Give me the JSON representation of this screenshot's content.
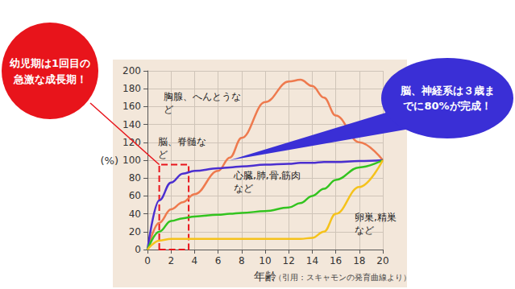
{
  "chart_data": {
    "type": "line",
    "x_label": "年齢",
    "y_label": "(%)",
    "source": "（引用：スキャモンの発育曲線より）",
    "x": [
      0,
      1,
      2,
      3,
      4,
      6,
      7,
      8,
      10,
      12,
      13,
      14,
      15,
      16,
      18,
      20
    ],
    "series": [
      {
        "name": "胸腺、へんとうなど",
        "color": "#ee7a4e",
        "values": [
          0,
          30,
          45,
          53,
          62,
          88,
          103,
          125,
          165,
          188,
          190,
          183,
          170,
          150,
          120,
          100
        ]
      },
      {
        "name": "脳、脊髄など",
        "color": "#4b2fd0",
        "values": [
          0,
          55,
          75,
          85,
          88,
          91,
          92,
          93,
          95,
          96,
          97,
          97,
          98,
          98,
          99,
          100
        ]
      },
      {
        "name": "心臓,肺,骨,筋肉など",
        "color": "#33c41f",
        "values": [
          0,
          20,
          32,
          35,
          37,
          39,
          40,
          41,
          43,
          47,
          52,
          60,
          68,
          78,
          92,
          100
        ]
      },
      {
        "name": "卵巣,精巣など",
        "color": "#f5c21b",
        "values": [
          0,
          10,
          12,
          12,
          12,
          12,
          12,
          12,
          12,
          12,
          12,
          13,
          20,
          40,
          70,
          100
        ]
      }
    ],
    "xlim": [
      0,
      20
    ],
    "xticks": [
      0,
      2,
      4,
      6,
      8,
      10,
      12,
      14,
      16,
      18,
      20
    ],
    "ylim": [
      0,
      200
    ],
    "yticks": [
      0,
      20,
      40,
      60,
      80,
      100,
      120,
      140,
      160,
      180,
      200
    ],
    "grid": true,
    "annotations": [
      {
        "text": "幼児期は1回目の急激な成長期！",
        "color": "#e8141b",
        "x_range": [
          1,
          3.5
        ],
        "y_range": [
          0,
          95
        ]
      },
      {
        "text": "脳、神経系は３歳までに80%が完成！",
        "color": "#3a2fd6",
        "points_to": [
          7,
          100
        ]
      }
    ]
  }
}
